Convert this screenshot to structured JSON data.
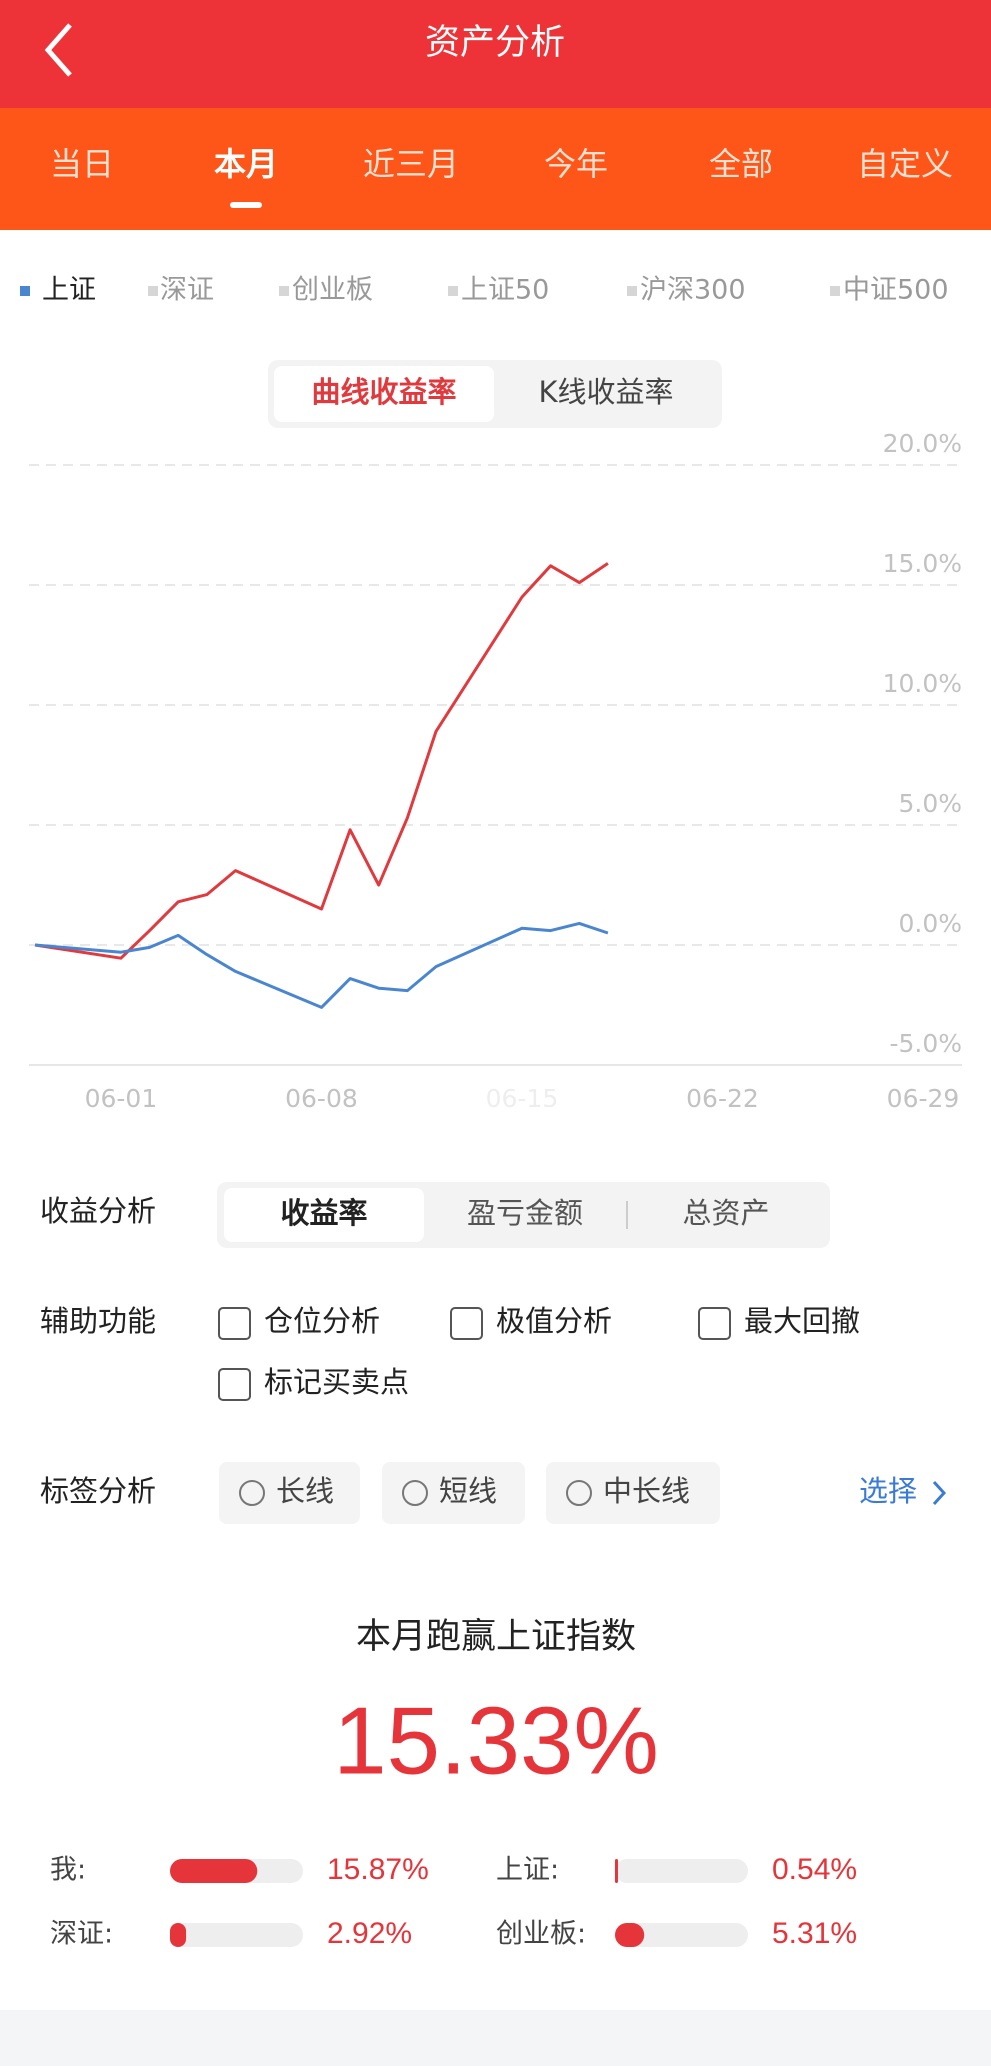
{
  "header": {
    "title": "资产分析"
  },
  "period_tabs": {
    "items": [
      "当日",
      "本月",
      "近三月",
      "今年",
      "全部",
      "自定义"
    ],
    "selected": 1
  },
  "index_tabs": [
    "深证",
    "创业板",
    "上证50",
    "沪深300",
    "中证500"
  ],
  "mode_tabs": {
    "items": [
      "曲线收益率",
      "K线收益率"
    ],
    "selected": 0
  },
  "chart_data": {
    "type": "line",
    "x": [
      "05-29",
      "06-01",
      "06-02",
      "06-03",
      "06-04",
      "06-05",
      "06-08",
      "06-09",
      "06-10",
      "06-11",
      "06-12",
      "06-15",
      "06-16",
      "06-17",
      "06-18"
    ],
    "series": [
      {
        "color": "#e03a3e",
        "values": [
          0,
          -0.55,
          0.6,
          1.8,
          2.1,
          3.1,
          1.5,
          4.8,
          2.5,
          5.3,
          8.9,
          14.5,
          15.8,
          15.1,
          15.9
        ]
      },
      {
        "name": "上证",
        "color": "#4a86d0",
        "values": [
          0,
          -0.3,
          -0.1,
          0.4,
          -0.4,
          -1.1,
          -2.6,
          -1.4,
          -1.8,
          -1.9,
          -0.9,
          0.7,
          0.6,
          0.9,
          0.5
        ]
      }
    ],
    "xlim": [
      "05-29",
      "06-29"
    ],
    "xticks": [
      "06-01",
      "06-08",
      "06-15",
      "06-22",
      "06-29"
    ],
    "ylim": [
      -5,
      20
    ],
    "yticks": [
      {
        "value": -5,
        "label": "-5.0%"
      },
      {
        "value": 0,
        "label": "0.0%"
      },
      {
        "value": 5,
        "label": "5.0%"
      },
      {
        "value": 10,
        "label": "10.0%"
      },
      {
        "value": 15,
        "label": "15.0%"
      },
      {
        "value": 20,
        "label": "20.0%"
      }
    ],
    "grid": true
  },
  "profit_analysis": {
    "label": "收益分析",
    "options": [
      "收益率",
      "盈亏金额",
      "总资产"
    ],
    "selected": 0
  },
  "aux_functions": {
    "label": "辅助功能",
    "options": [
      "仓位分析",
      "极值分析",
      "最大回撤",
      "标记买卖点"
    ]
  },
  "tag_analysis": {
    "label": "标签分析",
    "options": [
      "长线",
      "短线",
      "中长线"
    ],
    "action": "选择"
  },
  "summary": {
    "title": "本月跑赢上证指数",
    "value": 15.33,
    "value_label": "15.33%"
  },
  "comparison": {
    "labels": [
      "我:",
      "上证:",
      "深证:",
      "创业板:"
    ],
    "values": [
      15.87,
      0.54,
      2.92,
      5.31
    ],
    "value_labels": [
      "15.87%",
      "0.54%",
      "2.92%",
      "5.31%"
    ]
  }
}
